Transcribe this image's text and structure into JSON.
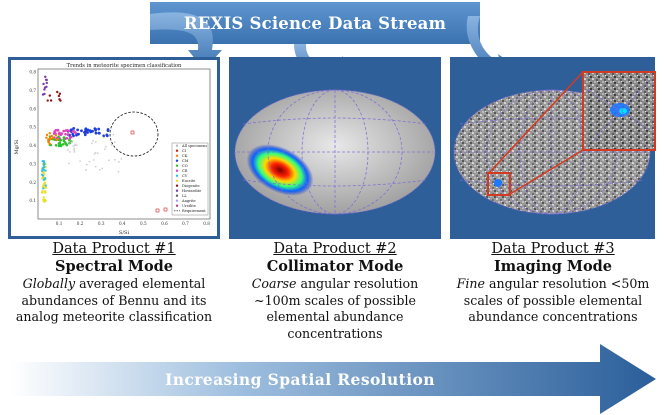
{
  "banner": {
    "title": "REXIS Science Data Stream"
  },
  "bottom_arrow": {
    "label": "Increasing Spatial Resolution"
  },
  "colors": {
    "arrow_blue": "#3f78b6",
    "panel_blue": "#2e5f99",
    "callout_red": "#d43a22"
  },
  "products": [
    {
      "title": "Data Product #1",
      "mode": "Spectral Mode",
      "desc_emph": "Globally",
      "desc_rest": " averaged elemental abundances of Bennu and its analog meteorite classification"
    },
    {
      "title": "Data Product #2",
      "mode": "Collimator Mode",
      "desc_emph": "Coarse",
      "desc_rest": " angular resolution ~100m scales of possible elemental abundance concentrations"
    },
    {
      "title": "Data Product #3",
      "mode": "Imaging Mode",
      "desc_emph": "Fine",
      "desc_rest": " angular resolution <50m scales of possible elemental abundance concentrations"
    }
  ],
  "plot": {
    "title": "Trends in meteorite specimen classification",
    "xlabel": "S/Si",
    "ylabel": "Mg/Si",
    "x_ticks": [
      "0.1",
      "0.2",
      "0.3",
      "0.4",
      "0.5",
      "0.6",
      "0.7",
      "0.8"
    ],
    "y_ticks": [
      "0.1",
      "0.2",
      "0.3",
      "0.4",
      "0.5",
      "0.6",
      "0.7",
      "0.8"
    ],
    "legend": [
      "All specimens",
      "CI",
      "CK",
      "CM",
      "CO",
      "CR",
      "CV",
      "Eucrite",
      "Diogenite",
      "Howardite",
      "LL",
      "Angrite",
      "Ureilite",
      "Requirement"
    ]
  }
}
